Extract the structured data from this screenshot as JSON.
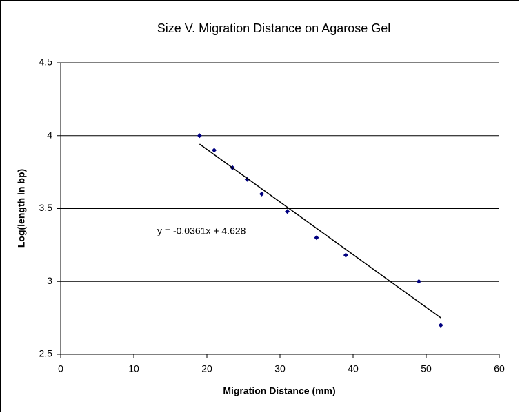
{
  "chart_data": {
    "type": "scatter",
    "title": "Size V. Migration Distance on Agarose Gel",
    "x_label": "Migration Distance (mm)",
    "y_label": "Log(length in bp)",
    "x": [
      19,
      21,
      23.5,
      25.5,
      27.5,
      31,
      35,
      39,
      49,
      52
    ],
    "values": [
      4.0,
      3.9,
      3.78,
      3.7,
      3.6,
      3.48,
      3.3,
      3.18,
      3.0,
      2.7
    ],
    "color": "#000080",
    "xlim": [
      0,
      60
    ],
    "xticks": [
      0,
      10,
      20,
      30,
      40,
      50,
      60
    ],
    "ylim": [
      2.5,
      4.5
    ],
    "yticks": [
      2.5,
      3,
      3.5,
      4,
      4.5
    ],
    "grid": true,
    "trendline": {
      "label": "y = -0.0361x + 4.628",
      "slope": -0.0361,
      "intercept": 4.628
    }
  }
}
